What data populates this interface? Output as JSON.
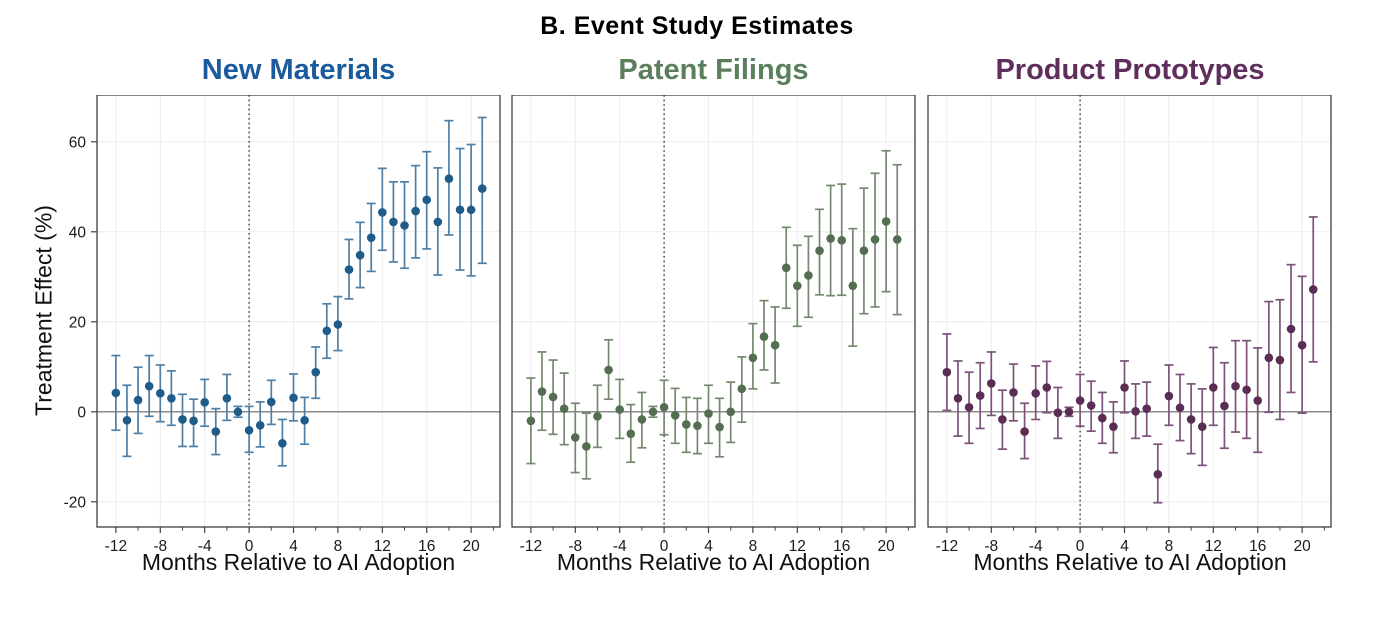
{
  "page": {
    "title": "B. Event Study Estimates"
  },
  "axes": {
    "ylabel": "Treatment Effect (%)",
    "xlabel": "Months Relative to AI Adoption",
    "yticks": [
      -20,
      0,
      20,
      40,
      60
    ],
    "xticks": [
      -12,
      -8,
      -4,
      0,
      4,
      8,
      12,
      16,
      20
    ],
    "minor_xticks": [
      -10,
      -6,
      -2,
      2,
      6,
      10,
      14,
      18,
      22
    ],
    "ylim": [
      -25.6,
      70.4
    ],
    "xlim": [
      -13.7,
      22.6
    ],
    "grid": true,
    "zero_line": true,
    "event_line_x": 0
  },
  "style": {
    "frame_color": "#3f3f3f",
    "grid_color": "#ececec",
    "zero_line_color": "#8a8a8a",
    "event_line_color": "#1a1a1a",
    "tick_text_color": "#1a1a1a"
  },
  "chart_data": [
    {
      "type": "scatter",
      "title": "New Materials",
      "title_color": "#1b5a9c",
      "point_color": "#1f5c8a",
      "bar_color": "#4f7fa5",
      "x": [
        -12,
        -11,
        -10,
        -9,
        -8,
        -7,
        -6,
        -5,
        -4,
        -3,
        -2,
        -1,
        0,
        1,
        2,
        3,
        4,
        5,
        6,
        7,
        8,
        9,
        10,
        11,
        12,
        13,
        14,
        15,
        16,
        17,
        18,
        19,
        20,
        21
      ],
      "values": [
        4.2,
        -1.9,
        2.6,
        5.7,
        4.1,
        3.0,
        -1.7,
        -2.0,
        2.1,
        -4.4,
        3.0,
        0.0,
        -4.1,
        -3.0,
        2.2,
        -7.0,
        3.1,
        -1.9,
        8.8,
        18.0,
        19.4,
        31.6,
        34.8,
        38.7,
        44.3,
        42.2,
        41.4,
        44.6,
        47.1,
        42.2,
        51.8,
        44.9,
        44.9,
        49.6
      ],
      "ci_low": [
        -4.1,
        -9.9,
        -4.8,
        -1.0,
        -2.2,
        -3.0,
        -7.7,
        -7.7,
        -3.2,
        -9.5,
        -1.9,
        -1.2,
        -9.0,
        -7.8,
        -2.8,
        -12.0,
        -2.0,
        -7.2,
        3.0,
        11.9,
        13.6,
        25.1,
        27.6,
        31.2,
        35.9,
        33.3,
        31.9,
        34.2,
        36.2,
        30.4,
        39.3,
        31.5,
        30.2,
        33.0
      ],
      "ci_high": [
        12.5,
        5.9,
        9.9,
        12.5,
        10.4,
        9.1,
        3.9,
        2.8,
        7.2,
        0.7,
        8.3,
        1.2,
        1.2,
        2.2,
        7.0,
        -1.7,
        8.4,
        3.2,
        14.4,
        24.0,
        25.6,
        38.3,
        42.1,
        46.3,
        54.1,
        51.1,
        51.1,
        54.7,
        57.8,
        54.2,
        64.7,
        58.5,
        59.4,
        65.4
      ],
      "xlabel": "Months Relative to AI Adoption",
      "ylabel": "Treatment Effect (%)"
    },
    {
      "type": "scatter",
      "title": "Patent Filings",
      "title_color": "#5b7e5d",
      "point_color": "#546e52",
      "bar_color": "#74896f",
      "x": [
        -12,
        -11,
        -10,
        -9,
        -8,
        -7,
        -6,
        -5,
        -4,
        -3,
        -2,
        -1,
        0,
        1,
        2,
        3,
        4,
        5,
        6,
        7,
        8,
        9,
        10,
        11,
        12,
        13,
        14,
        15,
        16,
        17,
        18,
        19,
        20,
        21
      ],
      "values": [
        -2.0,
        4.5,
        3.3,
        0.7,
        -5.7,
        -7.7,
        -1.0,
        9.3,
        0.5,
        -4.9,
        -1.7,
        0.0,
        1.0,
        -0.8,
        -2.8,
        -3.1,
        -0.4,
        -3.4,
        0.0,
        5.1,
        12.0,
        16.7,
        14.8,
        32.0,
        28.0,
        30.3,
        35.8,
        38.5,
        38.1,
        28.0,
        35.8,
        38.3,
        42.3,
        38.3
      ],
      "ci_low": [
        -11.5,
        -4.1,
        -5.0,
        -7.3,
        -13.5,
        -14.9,
        -7.9,
        2.8,
        -5.9,
        -11.2,
        -8.0,
        -1.2,
        -5.1,
        -7.0,
        -9.0,
        -9.3,
        -7.0,
        -10.0,
        -6.8,
        -2.3,
        5.1,
        9.3,
        6.4,
        23.0,
        19.0,
        21.0,
        26.0,
        25.8,
        25.9,
        14.6,
        21.8,
        23.3,
        26.7,
        21.6
      ],
      "ci_high": [
        7.5,
        13.3,
        11.5,
        8.6,
        1.9,
        -0.3,
        5.9,
        16.0,
        7.2,
        1.6,
        4.3,
        1.2,
        7.0,
        5.2,
        3.2,
        3.0,
        5.9,
        3.0,
        6.6,
        12.2,
        19.6,
        24.7,
        23.3,
        41.0,
        37.0,
        39.0,
        45.0,
        50.3,
        50.6,
        40.7,
        49.7,
        53.0,
        58.0,
        54.9
      ],
      "xlabel": "Months Relative to AI Adoption",
      "ylabel": "Treatment Effect (%)"
    },
    {
      "type": "scatter",
      "title": "Product Prototypes",
      "title_color": "#5f2e5c",
      "point_color": "#5a2d55",
      "bar_color": "#7b527a",
      "x": [
        -12,
        -11,
        -10,
        -9,
        -8,
        -7,
        -6,
        -5,
        -4,
        -3,
        -2,
        -1,
        0,
        1,
        2,
        3,
        4,
        5,
        6,
        7,
        8,
        9,
        10,
        11,
        12,
        13,
        14,
        15,
        16,
        17,
        18,
        19,
        20,
        21
      ],
      "values": [
        8.8,
        3.0,
        1.0,
        3.6,
        6.3,
        -1.7,
        4.3,
        -4.4,
        4.1,
        5.4,
        -0.2,
        0.0,
        2.5,
        1.4,
        -1.4,
        -3.3,
        5.4,
        0.1,
        0.7,
        -13.9,
        3.5,
        0.9,
        -1.7,
        -3.3,
        5.4,
        1.3,
        5.7,
        4.9,
        2.5,
        12.0,
        11.5,
        18.4,
        14.8,
        27.2
      ],
      "ci_low": [
        0.3,
        -5.4,
        -7.0,
        -3.7,
        -0.8,
        -8.3,
        -2.0,
        -10.4,
        -1.7,
        -0.2,
        -5.9,
        -1.0,
        -3.2,
        -4.3,
        -7.0,
        -9.1,
        -0.2,
        -5.9,
        -5.4,
        -20.2,
        -3.0,
        -6.4,
        -9.3,
        -11.9,
        -3.0,
        -8.1,
        -4.5,
        -5.9,
        -9.0,
        -0.1,
        -1.7,
        4.3,
        -0.3,
        11.1
      ],
      "ci_high": [
        17.3,
        11.3,
        8.8,
        10.9,
        13.3,
        4.8,
        10.6,
        1.9,
        10.2,
        11.2,
        5.4,
        1.0,
        8.3,
        6.8,
        4.3,
        2.2,
        11.3,
        6.2,
        6.6,
        -7.2,
        10.4,
        8.3,
        6.2,
        5.1,
        14.3,
        10.9,
        15.8,
        15.8,
        14.2,
        24.5,
        24.9,
        32.7,
        30.1,
        43.3
      ],
      "xlabel": "Months Relative to AI Adoption",
      "ylabel": "Treatment Effect (%)"
    }
  ]
}
